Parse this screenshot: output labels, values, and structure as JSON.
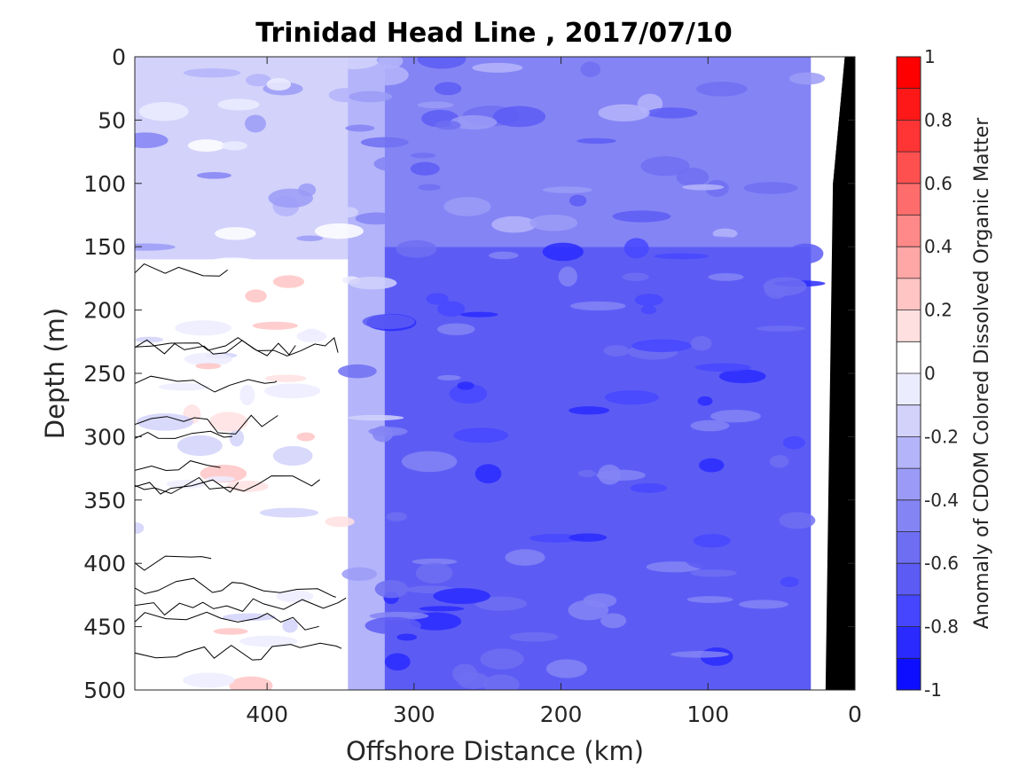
{
  "chart_data": {
    "type": "heatmap",
    "title": "Trinidad Head Line , 2017/07/10",
    "xlabel": "Offshore Distance (km)",
    "ylabel": "Depth (m)",
    "xlim": [
      490,
      0
    ],
    "ylim": [
      500,
      0
    ],
    "x_reversed": true,
    "y_reversed": true,
    "x_ticks": [
      400,
      300,
      200,
      100,
      0
    ],
    "y_ticks": [
      0,
      50,
      100,
      150,
      200,
      250,
      300,
      350,
      400,
      450,
      500
    ],
    "colorbar": {
      "label": "Anomaly of CDOM Colored Dissolved Organic Matter",
      "range": [
        -1,
        1
      ],
      "ticks": [
        1,
        0.8,
        0.6,
        0.4,
        0.2,
        0,
        -0.2,
        -0.4,
        -0.6,
        -0.8,
        -1
      ],
      "levels": [
        -1,
        -0.9,
        -0.8,
        -0.7,
        -0.6,
        -0.5,
        -0.4,
        -0.3,
        -0.2,
        -0.1,
        0,
        0.1,
        0.2,
        0.3,
        0.4,
        0.5,
        0.6,
        0.7,
        0.8,
        0.9,
        1
      ],
      "colors": [
        "#0d0dff",
        "#2a2aff",
        "#4646ff",
        "#5c5cf5",
        "#6e6ef2",
        "#8484f5",
        "#9b9bf7",
        "#b4b4fa",
        "#d2d2fb",
        "#ececff",
        "#ffffff",
        "#ffe0e0",
        "#ffc4c4",
        "#ffa6a6",
        "#ff8888",
        "#ff6c6c",
        "#ff5050",
        "#ff3434",
        "#ff1818",
        "#ff0000"
      ]
    },
    "regions": [
      {
        "name": "far offshore upper layer",
        "x_range": [
          490,
          340
        ],
        "depth_range": [
          0,
          160
        ],
        "anomaly": -0.2
      },
      {
        "name": "far offshore deep layer",
        "x_range": [
          490,
          345
        ],
        "depth_range": [
          160,
          500
        ],
        "anomaly": 0.05,
        "contour_level": 0
      },
      {
        "name": "transition band",
        "x_range": [
          345,
          320
        ],
        "depth_range": [
          0,
          500
        ],
        "anomaly": -0.3
      },
      {
        "name": "mid-section upper",
        "x_range": [
          320,
          30
        ],
        "depth_range": [
          0,
          150
        ],
        "anomaly": -0.45
      },
      {
        "name": "mid-section deep",
        "x_range": [
          320,
          30
        ],
        "depth_range": [
          150,
          500
        ],
        "anomaly": -0.65
      }
    ],
    "bathymetry": {
      "color": "#000000",
      "points": [
        [
          20,
          500
        ],
        [
          15,
          100
        ],
        [
          7,
          0
        ]
      ]
    }
  }
}
